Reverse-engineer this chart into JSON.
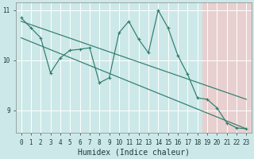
{
  "xlabel": "Humidex (Indice chaleur)",
  "xlim": [
    -0.5,
    23.5
  ],
  "ylim": [
    8.55,
    11.15
  ],
  "yticks": [
    9,
    10,
    11
  ],
  "xticks": [
    0,
    1,
    2,
    3,
    4,
    5,
    6,
    7,
    8,
    9,
    10,
    11,
    12,
    13,
    14,
    15,
    16,
    17,
    18,
    19,
    20,
    21,
    22,
    23
  ],
  "bg_color_left": "#cce8e8",
  "bg_color_right": "#e8cccc",
  "grid_color": "#ffffff",
  "line_color": "#2e7d6e",
  "main_y": [
    10.85,
    10.65,
    10.45,
    9.75,
    10.05,
    10.2,
    10.22,
    10.25,
    9.55,
    9.65,
    10.55,
    10.78,
    10.42,
    10.15,
    11.0,
    10.65,
    10.1,
    9.72,
    9.25,
    9.22,
    9.05,
    8.75,
    8.65,
    8.63
  ],
  "trend1_x": [
    0,
    23
  ],
  "trend1_y": [
    10.78,
    9.22
  ],
  "trend2_x": [
    0,
    23
  ],
  "trend2_y": [
    10.45,
    8.63
  ],
  "marker_x": [
    0,
    1,
    2,
    3,
    4,
    5,
    6,
    7,
    8,
    9,
    10,
    11,
    12,
    13,
    14,
    15,
    16,
    17,
    18,
    19,
    20,
    21,
    22,
    23
  ],
  "xlabel_fontsize": 7
}
